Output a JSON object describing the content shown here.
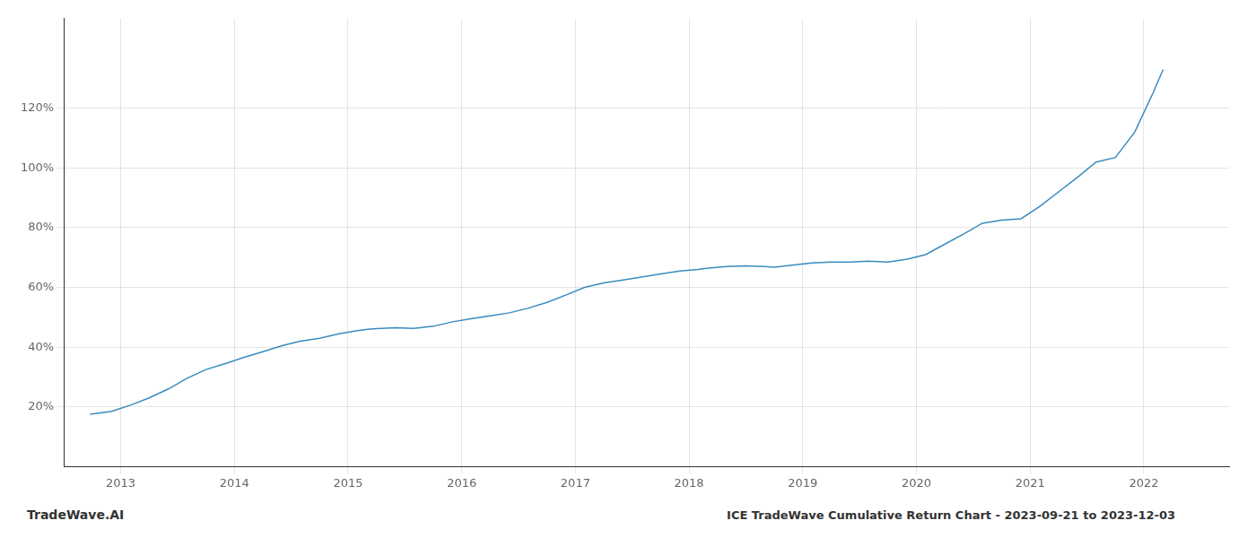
{
  "chart_data": {
    "type": "line",
    "title": "ICE TradeWave Cumulative Return Chart - 2023-09-21 to 2023-12-03",
    "annotation": "TradeWave.AI",
    "color": "#3a8bbf",
    "grid": true,
    "x": [
      2012.73,
      2012.92,
      2013.08,
      2013.25,
      2013.42,
      2013.58,
      2013.75,
      2013.92,
      2014.08,
      2014.25,
      2014.42,
      2014.58,
      2014.75,
      2014.92,
      2015.08,
      2015.17,
      2015.25,
      2015.42,
      2015.58,
      2015.75,
      2015.92,
      2016.08,
      2016.25,
      2016.42,
      2016.58,
      2016.75,
      2016.92,
      2017.08,
      2017.25,
      2017.42,
      2017.58,
      2017.75,
      2017.92,
      2018.08,
      2018.17,
      2018.33,
      2018.5,
      2018.67,
      2018.75,
      2018.92,
      2019.08,
      2019.25,
      2019.42,
      2019.58,
      2019.75,
      2019.92,
      2020.08,
      2020.25,
      2020.42,
      2020.58,
      2020.75,
      2020.92,
      2021.08,
      2021.25,
      2021.42,
      2021.58,
      2021.75,
      2021.92,
      2022.08,
      2022.17
    ],
    "values": [
      17.5,
      18.5,
      20.5,
      23.0,
      26.0,
      29.5,
      32.5,
      34.5,
      36.5,
      38.5,
      40.5,
      42.0,
      43.0,
      44.5,
      45.5,
      46.0,
      46.2,
      46.5,
      46.3,
      47.0,
      48.5,
      49.5,
      50.5,
      51.5,
      53.0,
      55.0,
      57.5,
      60.0,
      61.5,
      62.5,
      63.5,
      64.5,
      65.5,
      66.0,
      66.5,
      67.0,
      67.2,
      67.0,
      66.8,
      67.5,
      68.2,
      68.5,
      68.5,
      68.8,
      68.5,
      69.5,
      71.0,
      74.5,
      78.0,
      81.5,
      82.5,
      83.0,
      87.0,
      92.0,
      97.0,
      102.0,
      103.5,
      112.0,
      125.0,
      133.0
    ],
    "xlim": [
      2012.5,
      2022.75
    ],
    "xticks": [
      2013,
      2014,
      2015,
      2016,
      2017,
      2018,
      2019,
      2020,
      2021,
      2022
    ],
    "ylim": [
      0,
      150
    ],
    "yticks": [
      {
        "value": 20,
        "label": "20%"
      },
      {
        "value": 40,
        "label": "40%"
      },
      {
        "value": 60,
        "label": "60%"
      },
      {
        "value": 80,
        "label": "80%"
      },
      {
        "value": 100,
        "label": "100%"
      },
      {
        "value": 120,
        "label": "120%"
      }
    ]
  }
}
